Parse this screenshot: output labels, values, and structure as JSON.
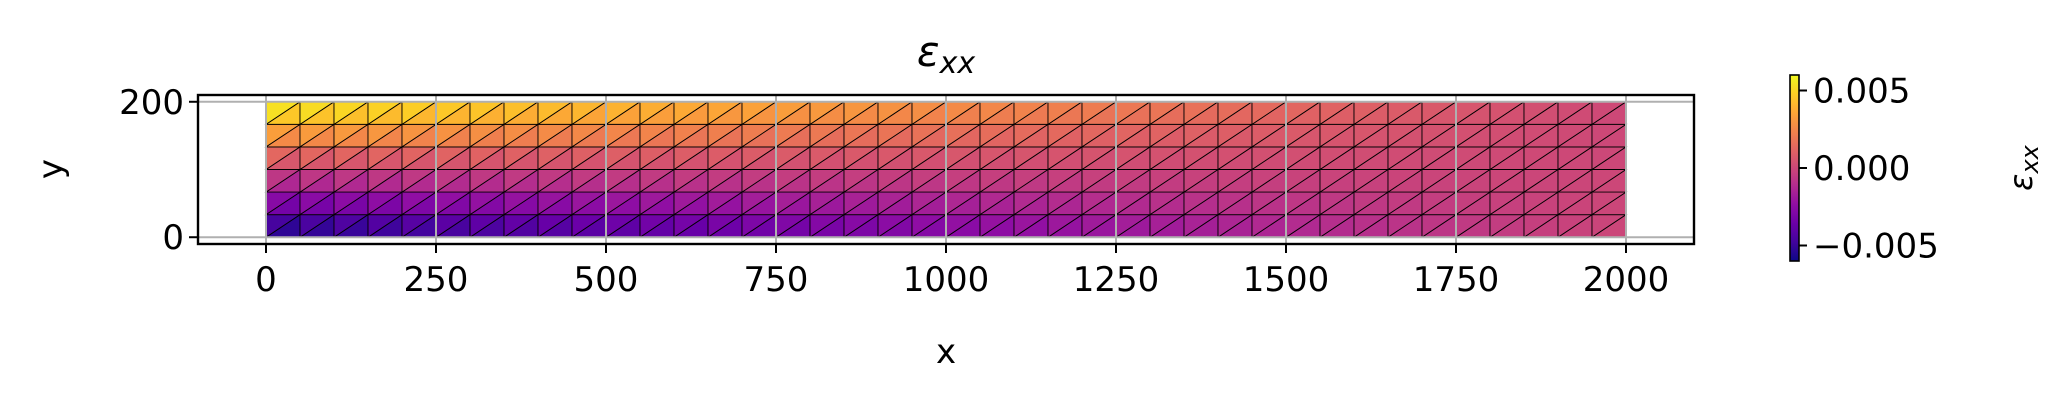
{
  "chart_data": {
    "type": "heatmap",
    "title": {
      "main": "ε",
      "sub": "xx"
    },
    "xlabel": "x",
    "ylabel": "y",
    "xlim": [
      -100,
      2100
    ],
    "ylim": [
      -10,
      210
    ],
    "xticks": [
      0,
      250,
      500,
      750,
      1000,
      1250,
      1500,
      1750,
      2000
    ],
    "xtick_labels": [
      "0",
      "250",
      "500",
      "750",
      "1000",
      "1250",
      "1500",
      "1750",
      "2000"
    ],
    "yticks": [
      0,
      200
    ],
    "ytick_labels": [
      "0",
      "200"
    ],
    "grid": true,
    "mesh": {
      "x_range": [
        0,
        2000
      ],
      "y_range": [
        0,
        200
      ],
      "nx": 40,
      "ny": 6,
      "element": "triangle",
      "edge_color": "#000000"
    },
    "field": {
      "description": "linear in x and y: value = slope_at_x0 * (1 - x/2000) * (y - 100)/100",
      "slope_at_x0": 0.006
    },
    "colorbar": {
      "label": {
        "main": "ε",
        "sub": "xx"
      },
      "colormap": "plasma",
      "vmin": -0.006,
      "vmax": 0.006,
      "ticks": [
        0.005,
        0.0,
        -0.005
      ],
      "tick_labels": [
        "0.005",
        "0.000",
        "−0.005"
      ]
    }
  }
}
